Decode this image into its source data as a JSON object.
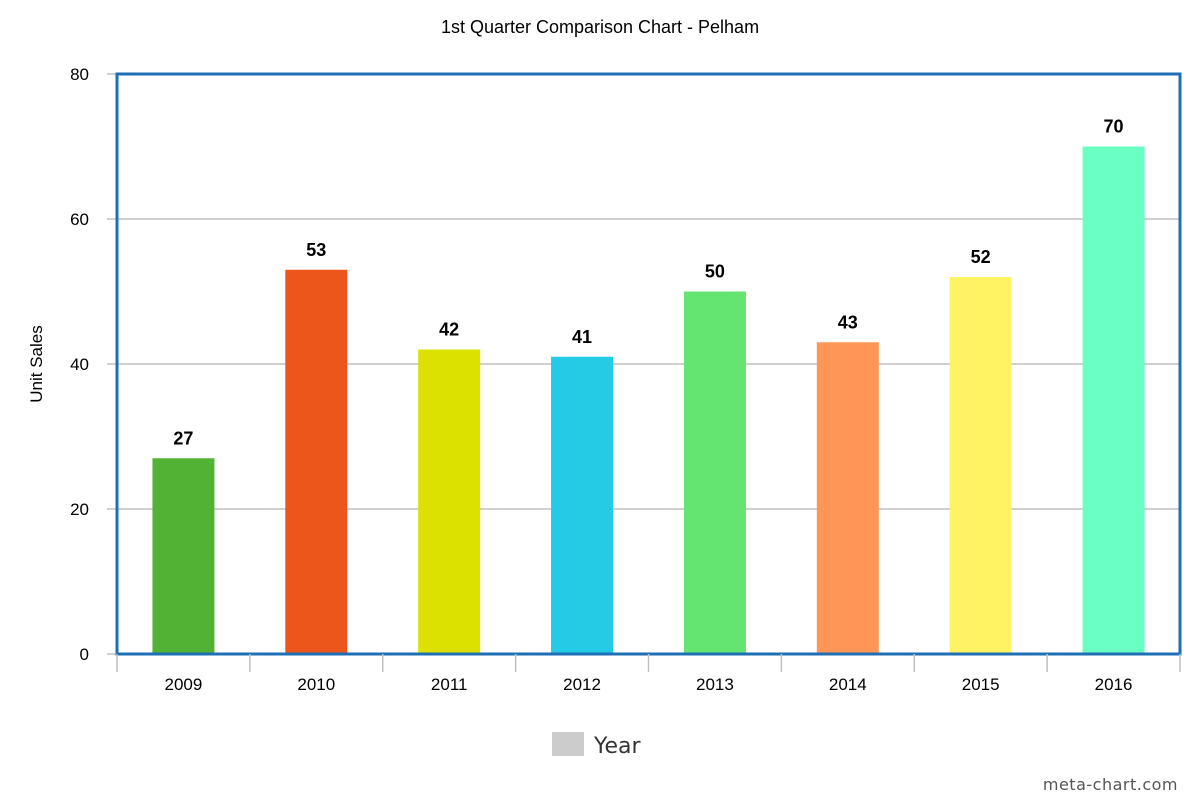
{
  "chart_data": {
    "type": "bar",
    "title": "1st Quarter Comparison Chart - Pelham",
    "xlabel": "",
    "ylabel": "Unit Sales",
    "categories": [
      "2009",
      "2010",
      "2011",
      "2012",
      "2013",
      "2014",
      "2015",
      "2016"
    ],
    "values": [
      27,
      53,
      42,
      41,
      50,
      43,
      52,
      70
    ],
    "colors": [
      "#52b234",
      "#ec561b",
      "#dde100",
      "#24cbe5",
      "#64e572",
      "#ff9655",
      "#fff263",
      "#6affc3"
    ],
    "ylim": [
      0,
      80
    ],
    "yticks": [
      0,
      20,
      40,
      60,
      80
    ],
    "grid": true,
    "legend": {
      "position": "bottom-center",
      "entries": [
        {
          "label": "Year",
          "color": "#cccccc"
        }
      ]
    },
    "frame_color": "#1f6fb5",
    "grid_color": "#c0c0c0"
  },
  "watermark": "meta-chart.com"
}
